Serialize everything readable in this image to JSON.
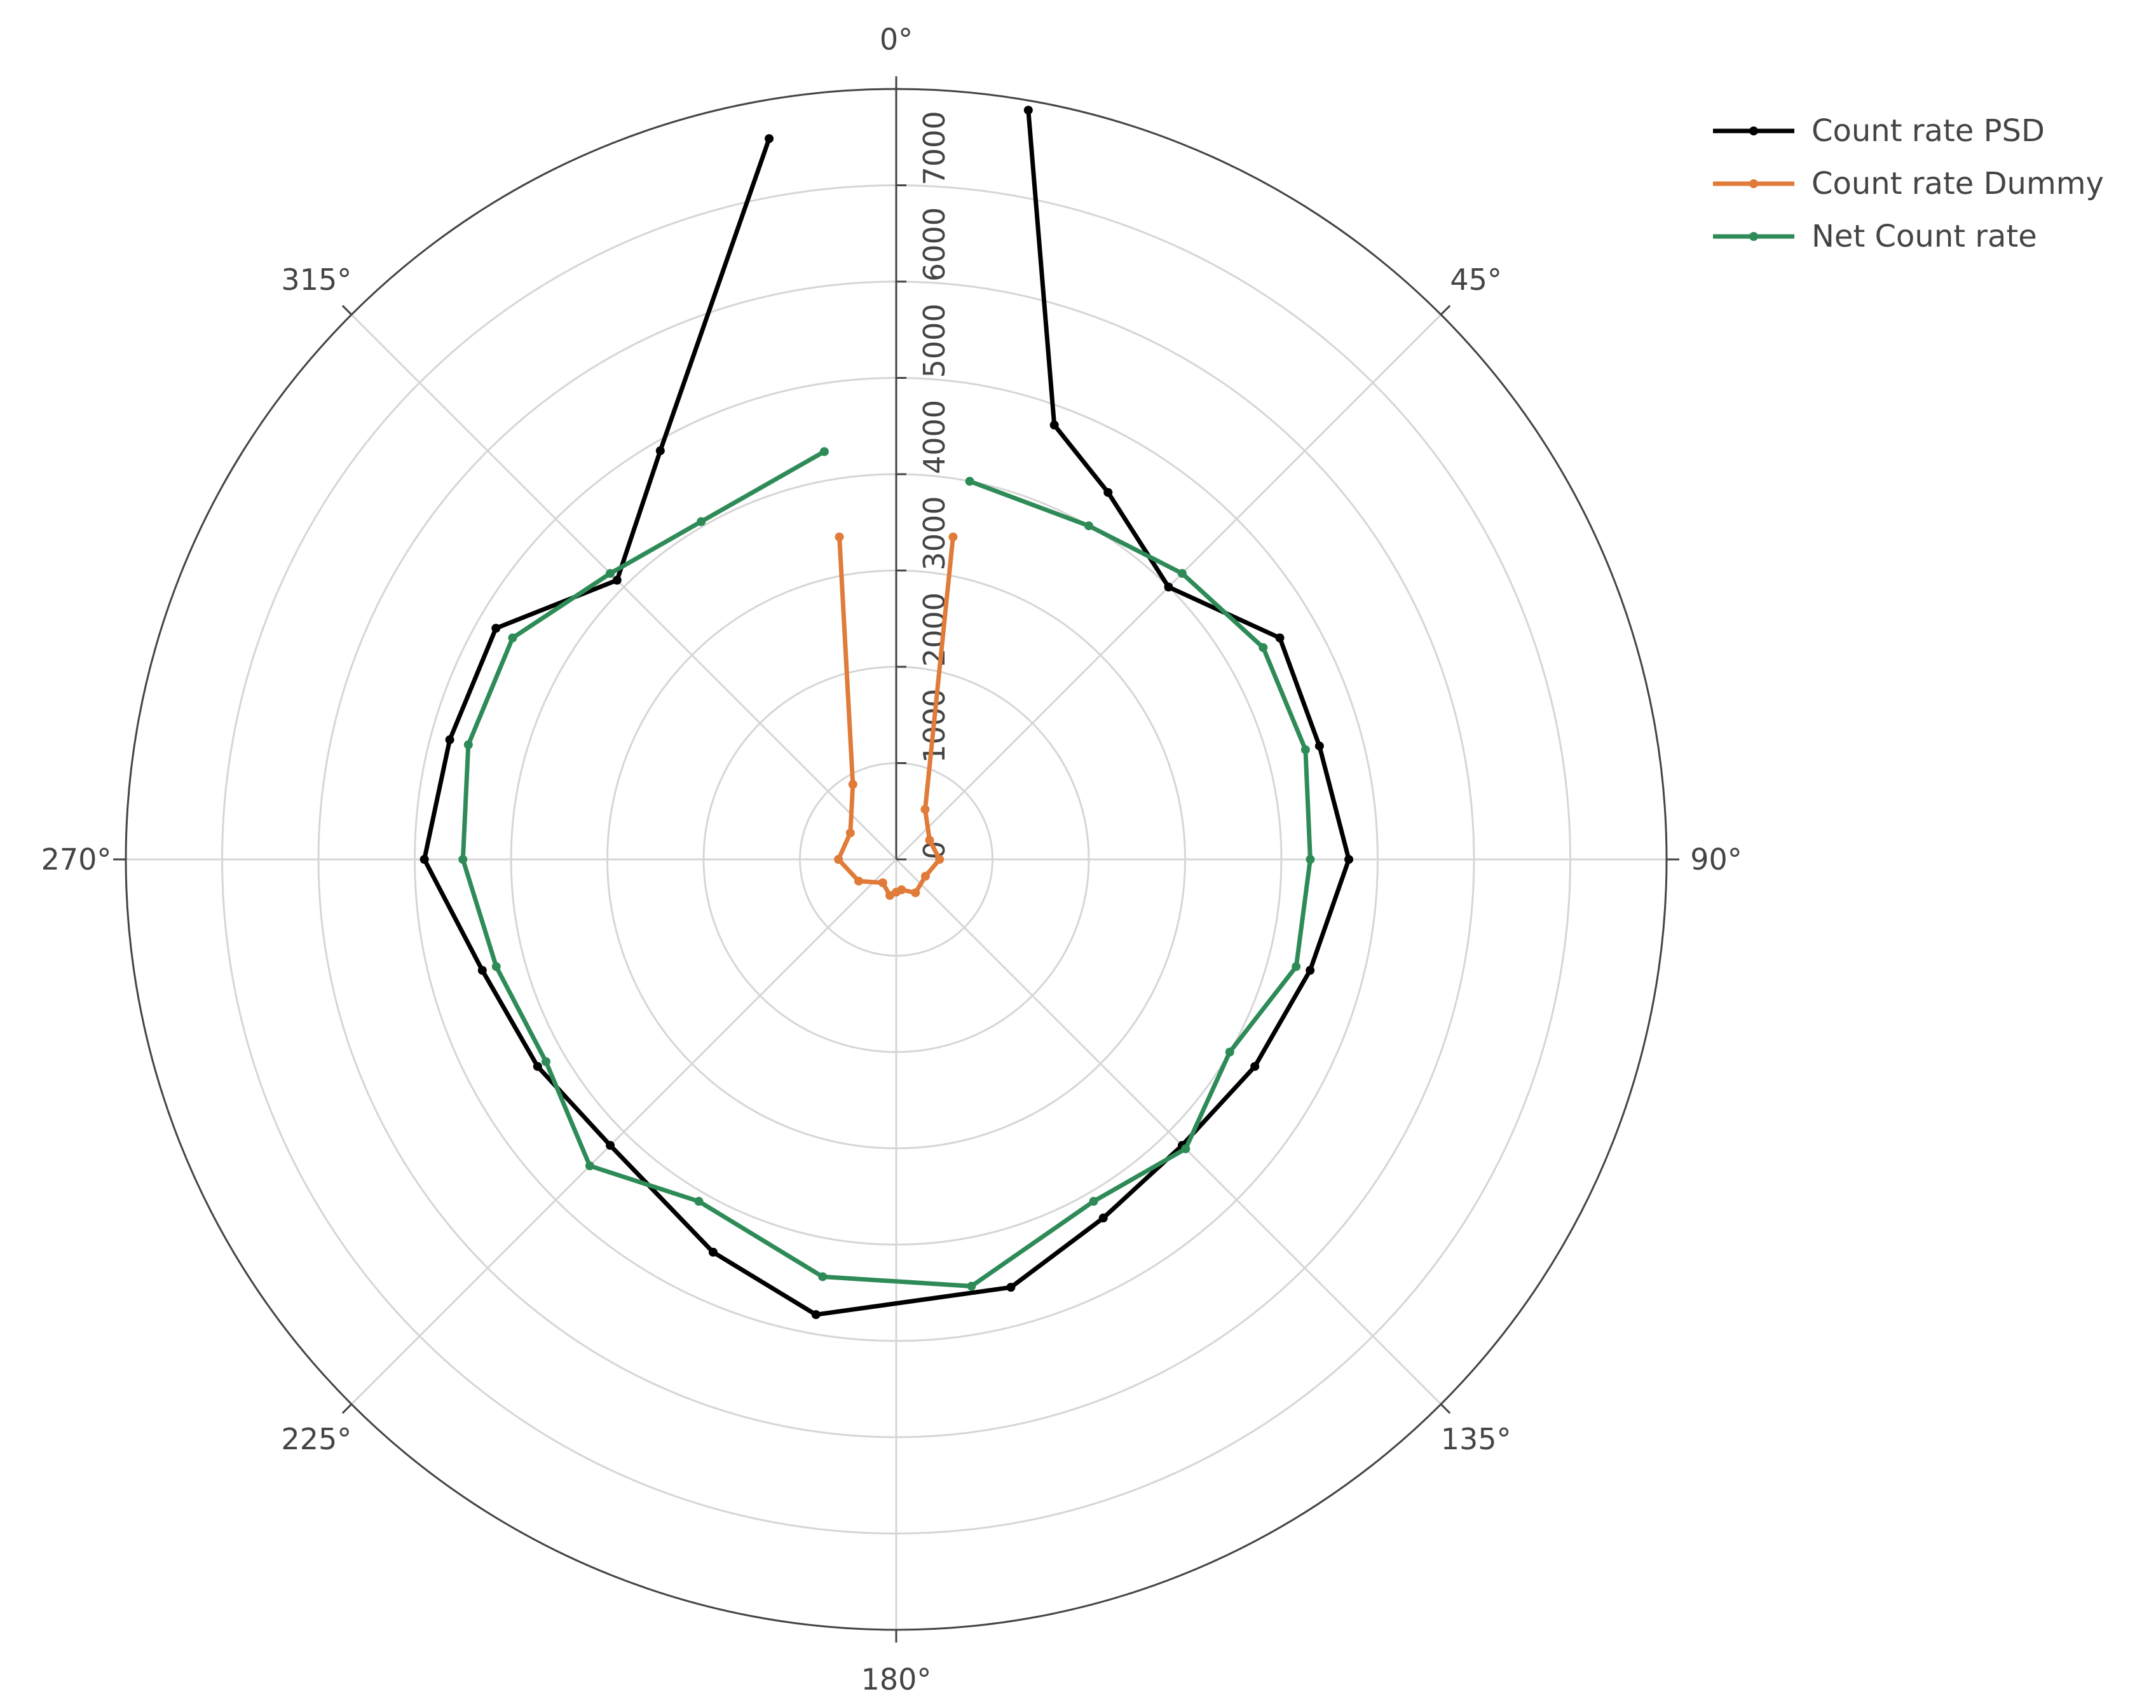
{
  "chart_data": {
    "type": "line",
    "subtype": "polar",
    "title": "",
    "angular_axis": {
      "unit": "°",
      "direction": "clockwise",
      "rotation": "0° at top",
      "tick_labels": [
        "0°",
        "45°",
        "90°",
        "135°",
        "180°",
        "225°",
        "270°",
        "315°"
      ]
    },
    "radial_axis": {
      "range": [
        0,
        8000
      ],
      "tick_labels": [
        "0",
        "1000",
        "2000",
        "3000",
        "4000",
        "5000",
        "6000",
        "7000"
      ],
      "angle": "0°"
    },
    "grid": true,
    "legend": {
      "position": "top-right"
    },
    "series": [
      {
        "name": "Count rate PSD",
        "color": "#000000",
        "theta": [
          10,
          20,
          30,
          45,
          60,
          75,
          90,
          105,
          120,
          135,
          150,
          165,
          190,
          205,
          225,
          240,
          255,
          270,
          285,
          300,
          315,
          330,
          350
        ],
        "r": [
          7900,
          4800,
          4400,
          4000,
          4600,
          4550,
          4700,
          4450,
          4300,
          4200,
          4300,
          4600,
          4800,
          4500,
          4200,
          4300,
          4450,
          4900,
          4800,
          4800,
          4100,
          4900,
          7600
        ]
      },
      {
        "name": "Count rate Dummy",
        "color": "#e07b39",
        "theta": [
          10,
          30,
          60,
          90,
          120,
          150,
          170,
          180,
          190,
          210,
          240,
          270,
          300,
          330,
          350
        ],
        "r": [
          3400,
          600,
          400,
          450,
          350,
          400,
          320,
          340,
          380,
          280,
          450,
          600,
          550,
          900,
          3400
        ]
      },
      {
        "name": "Net Count rate",
        "color": "#2e8b57",
        "theta": [
          11,
          30,
          45,
          60,
          75,
          90,
          105,
          120,
          135,
          150,
          170,
          190,
          210,
          225,
          240,
          255,
          270,
          285,
          300,
          315,
          330,
          350
        ],
        "r": [
          4000,
          4000,
          4200,
          4400,
          4400,
          4300,
          4300,
          4000,
          4250,
          4100,
          4500,
          4400,
          4100,
          4500,
          4200,
          4300,
          4500,
          4600,
          4600,
          4200,
          4050,
          4300
        ]
      }
    ]
  }
}
